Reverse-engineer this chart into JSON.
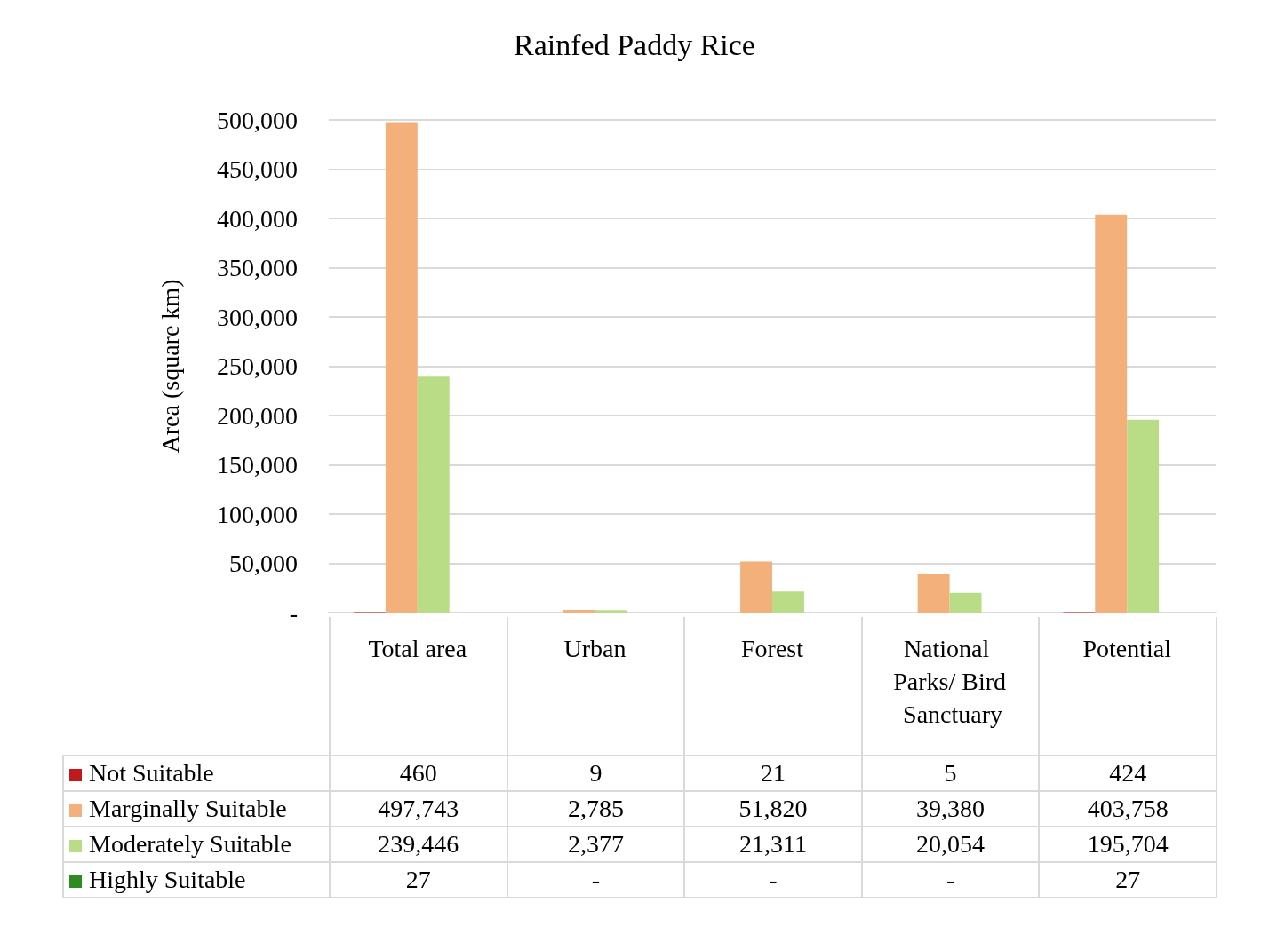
{
  "chart_data": {
    "type": "bar",
    "title": "Rainfed Paddy Rice",
    "ylabel": "Area (square km)",
    "categories": [
      "Total area",
      "Urban",
      "Forest",
      "National Parks/ Bird Sanctuary",
      "Potential"
    ],
    "series": [
      {
        "name": "Not Suitable",
        "color": "#c0191e",
        "values": [
          460,
          9,
          21,
          5,
          424
        ],
        "value_labels": [
          "460",
          "9",
          "21",
          "5",
          "424"
        ]
      },
      {
        "name": "Marginally Suitable",
        "color": "#f4b07b",
        "values": [
          497743,
          2785,
          51820,
          39380,
          403758
        ],
        "value_labels": [
          "497,743",
          "2,785",
          "51,820",
          "39,380",
          "403,758"
        ]
      },
      {
        "name": "Moderately Suitable",
        "color": "#b9dc87",
        "values": [
          239446,
          2377,
          21311,
          20054,
          195704
        ],
        "value_labels": [
          "239,446",
          "2,377",
          "21,311",
          "20,054",
          "195,704"
        ]
      },
      {
        "name": "Highly Suitable",
        "color": "#2e8b22",
        "values": [
          27,
          0,
          0,
          0,
          27
        ],
        "value_labels": [
          "27",
          "-",
          "-",
          "-",
          "27"
        ]
      }
    ],
    "ylim": [
      0,
      500000
    ],
    "yticks": [
      {
        "value": 0,
        "label": "-"
      },
      {
        "value": 50000,
        "label": "50,000"
      },
      {
        "value": 100000,
        "label": "100,000"
      },
      {
        "value": 150000,
        "label": "150,000"
      },
      {
        "value": 200000,
        "label": "200,000"
      },
      {
        "value": 250000,
        "label": "250,000"
      },
      {
        "value": 300000,
        "label": "300,000"
      },
      {
        "value": 350000,
        "label": "350,000"
      },
      {
        "value": 400000,
        "label": "400,000"
      },
      {
        "value": 450000,
        "label": "450,000"
      },
      {
        "value": 500000,
        "label": "500,000"
      }
    ],
    "grid": "y",
    "legend": "bottom"
  }
}
